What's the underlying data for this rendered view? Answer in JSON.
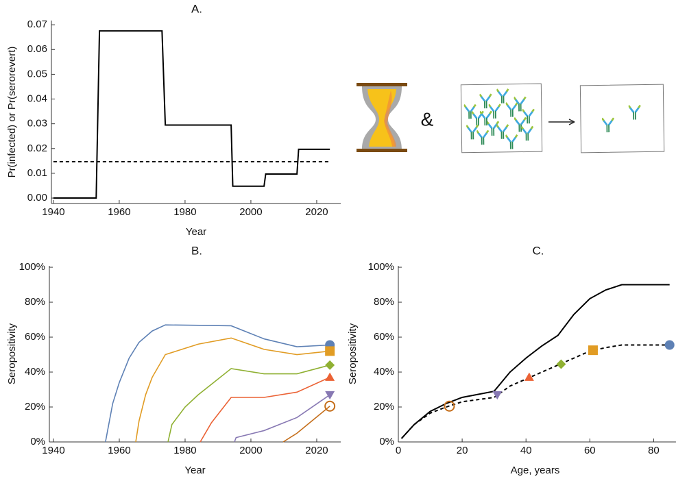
{
  "chart_data": [
    {
      "type": "line",
      "title": "A.",
      "xlabel": "Year",
      "ylabel": "Pr(infected) or Pr(serorevert)",
      "xlim": [
        1939.4,
        2027.3
      ],
      "ylim": [
        -0.0022,
        0.0717
      ],
      "xticks": [
        1940,
        1960,
        1980,
        2000,
        2020
      ],
      "yticks": [
        {
          "value": 0,
          "label": "0.00"
        },
        {
          "value": 0.01,
          "label": "0.01"
        },
        {
          "value": 0.02,
          "label": "0.02"
        },
        {
          "value": 0.03,
          "label": "0.03"
        },
        {
          "value": 0.04,
          "label": "0.04"
        },
        {
          "value": 0.05,
          "label": "0.05"
        },
        {
          "value": 0.06,
          "label": "0.06"
        },
        {
          "value": 0.07,
          "label": "0.07"
        }
      ],
      "series": [
        {
          "color": "#000000",
          "dash": false,
          "x": [
            1940,
            1953,
            1954,
            1973,
            1974,
            1994,
            1994.5,
            2004,
            2004.5,
            2014,
            2014.5,
            2024
          ],
          "values": [
            0,
            0,
            0.0675,
            0.0675,
            0.0295,
            0.0295,
            0.0048,
            0.0048,
            0.0097,
            0.0097,
            0.0197,
            0.0197
          ]
        },
        {
          "color": "#000000",
          "dash": true,
          "x": [
            1940,
            2024
          ],
          "values": [
            0.0147,
            0.0147
          ]
        }
      ]
    },
    {
      "type": "line",
      "title": "B.",
      "xlabel": "Year",
      "ylabel": "Seropositivity",
      "xlim": [
        1938.75,
        2027.3
      ],
      "ylim": [
        0,
        100.8
      ],
      "xticks": [
        1940,
        1960,
        1980,
        2000,
        2020
      ],
      "yticks": [
        {
          "value": 0,
          "label": "0%"
        },
        {
          "value": 20,
          "label": "20%"
        },
        {
          "value": 40,
          "label": "40%"
        },
        {
          "value": 60,
          "label": "60%"
        },
        {
          "value": 80,
          "label": "80%"
        },
        {
          "value": 100,
          "label": "100%"
        }
      ],
      "series": [
        {
          "color": "#5e81b5",
          "marker": "circle",
          "x": [
            1955.8,
            1958,
            1960,
            1963,
            1966,
            1970,
            1974,
            1994,
            2004,
            2014,
            2024
          ],
          "values": [
            0,
            22,
            34,
            48,
            57,
            63.5,
            67,
            66.5,
            59,
            54.5,
            55.5
          ]
        },
        {
          "color": "#e19c24",
          "marker": "square",
          "x": [
            1965,
            1966,
            1968,
            1970,
            1974,
            1984,
            1994,
            2004,
            2014,
            2024
          ],
          "values": [
            0,
            12,
            27,
            37,
            50,
            56,
            59.5,
            53,
            50,
            52
          ]
        },
        {
          "color": "#8fb032",
          "marker": "diamond",
          "x": [
            1974.8,
            1976,
            1980,
            1984,
            1988,
            1994,
            2004,
            2014,
            2024
          ],
          "values": [
            0,
            10,
            20,
            27,
            33,
            42,
            39,
            39,
            44
          ]
        },
        {
          "color": "#eb6235",
          "marker": "triangle",
          "x": [
            1984.6,
            1988,
            1994,
            2004,
            2014,
            2024
          ],
          "values": [
            0,
            11,
            25.5,
            25.5,
            28.5,
            37
          ]
        },
        {
          "color": "#8778b3",
          "marker": "triangle-down",
          "x": [
            1995,
            1995.5,
            2004,
            2014,
            2024
          ],
          "values": [
            0,
            2.5,
            6.5,
            14,
            27
          ]
        },
        {
          "color": "#c56e1a",
          "marker": "open-circle",
          "x": [
            2009.8,
            2014,
            2024
          ],
          "values": [
            0,
            5,
            20.5
          ]
        }
      ]
    },
    {
      "type": "line",
      "title": "C.",
      "xlabel": "Age, years",
      "ylabel": "Seropositivity",
      "xlim": [
        0,
        87
      ],
      "ylim": [
        0,
        100.8
      ],
      "xticks": [
        0,
        20,
        40,
        60,
        80
      ],
      "yticks": [
        {
          "value": 0,
          "label": "0%"
        },
        {
          "value": 20,
          "label": "20%"
        },
        {
          "value": 40,
          "label": "40%"
        },
        {
          "value": 60,
          "label": "60%"
        },
        {
          "value": 80,
          "label": "80%"
        },
        {
          "value": 100,
          "label": "100%"
        }
      ],
      "series": [
        {
          "color": "#000000",
          "dash": false,
          "x": [
            1,
            5,
            10,
            15,
            20,
            30,
            35,
            40,
            45,
            50,
            55,
            60,
            65,
            70,
            85
          ],
          "values": [
            2,
            10,
            17.5,
            22,
            25.5,
            29,
            40,
            48,
            55,
            61,
            73,
            82,
            87,
            90,
            90
          ]
        },
        {
          "color": "#000000",
          "dash": true,
          "x": [
            1,
            5,
            10,
            15,
            20,
            30,
            35,
            40,
            45,
            50,
            55,
            60,
            65,
            70,
            85
          ],
          "values": [
            2,
            10,
            16.5,
            20,
            23,
            25.5,
            32,
            36,
            40,
            44,
            48,
            52,
            54,
            55.5,
            55.5
          ]
        }
      ],
      "points": {
        "x": [
          16,
          31,
          41,
          51,
          61,
          85
        ],
        "values": [
          20.5,
          27,
          37,
          44.5,
          52.5,
          55.5
        ],
        "colors": [
          "#c56e1a",
          "#8778b3",
          "#eb6235",
          "#8fb032",
          "#e19c24",
          "#5e81b5"
        ],
        "markers": [
          "open-circle",
          "triangle-down",
          "triangle",
          "diamond",
          "square",
          "circle"
        ]
      }
    }
  ],
  "diagram": {
    "symbol": "&"
  }
}
